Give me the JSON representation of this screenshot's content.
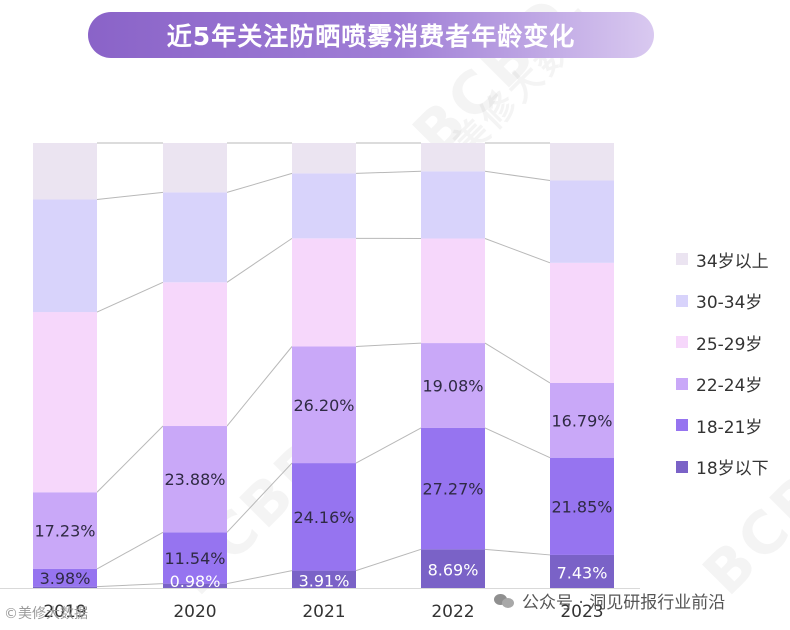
{
  "title": "近5年关注防晒喷雾消费者年龄变化",
  "colors": {
    "34岁以上": "#ebe4f1",
    "30-34岁": "#d8d3fb",
    "25-29岁": "#f6d7fb",
    "22-24岁": "#c9a8f8",
    "18-21岁": "#9674f0",
    "18岁以下": "#7a62c7"
  },
  "legend": [
    {
      "label": "34岁以上",
      "color": "#ebe4f1"
    },
    {
      "label": "30-34岁",
      "color": "#d8d3fb"
    },
    {
      "label": "25-29岁",
      "color": "#f6d7fb"
    },
    {
      "label": "22-24岁",
      "color": "#c9a8f8"
    },
    {
      "label": "18-21岁",
      "color": "#9674f0"
    },
    {
      "label": "18岁以下",
      "color": "#7a62c7"
    }
  ],
  "chart_data": {
    "type": "bar",
    "stacked": true,
    "normalized": true,
    "title": "近5年关注防晒喷雾消费者年龄变化",
    "categories": [
      "2019",
      "2020",
      "2021",
      "2022",
      "2023"
    ],
    "ylim": [
      0,
      100
    ],
    "series": [
      {
        "name": "18岁以下",
        "values": [
          0.3,
          0.98,
          3.91,
          8.69,
          7.43
        ],
        "labels": [
          "",
          "0.98%",
          "3.91%",
          "8.69%",
          "7.43%"
        ]
      },
      {
        "name": "18-21岁",
        "values": [
          3.98,
          11.54,
          24.16,
          27.27,
          21.85
        ],
        "labels": [
          "3.98%",
          "11.54%",
          "24.16%",
          "27.27%",
          "21.85%"
        ]
      },
      {
        "name": "22-24岁",
        "values": [
          17.23,
          23.88,
          26.2,
          19.08,
          16.79
        ],
        "labels": [
          "17.23%",
          "23.88%",
          "26.20%",
          "19.08%",
          "16.79%"
        ]
      },
      {
        "name": "25-29岁",
        "values": [
          40.5,
          32.3,
          24.3,
          23.5,
          27.0
        ]
      },
      {
        "name": "30-34岁",
        "values": [
          25.3,
          20.2,
          14.6,
          15.1,
          18.5
        ]
      },
      {
        "name": "34岁以上",
        "values": [
          12.69,
          11.1,
          6.83,
          6.36,
          8.43
        ]
      }
    ]
  },
  "watermark": {
    "account": "公众号 · 洞见研报行业前沿",
    "source": "©美修大数据",
    "brand": "BCBD",
    "brand_sub": "美修大数据"
  }
}
